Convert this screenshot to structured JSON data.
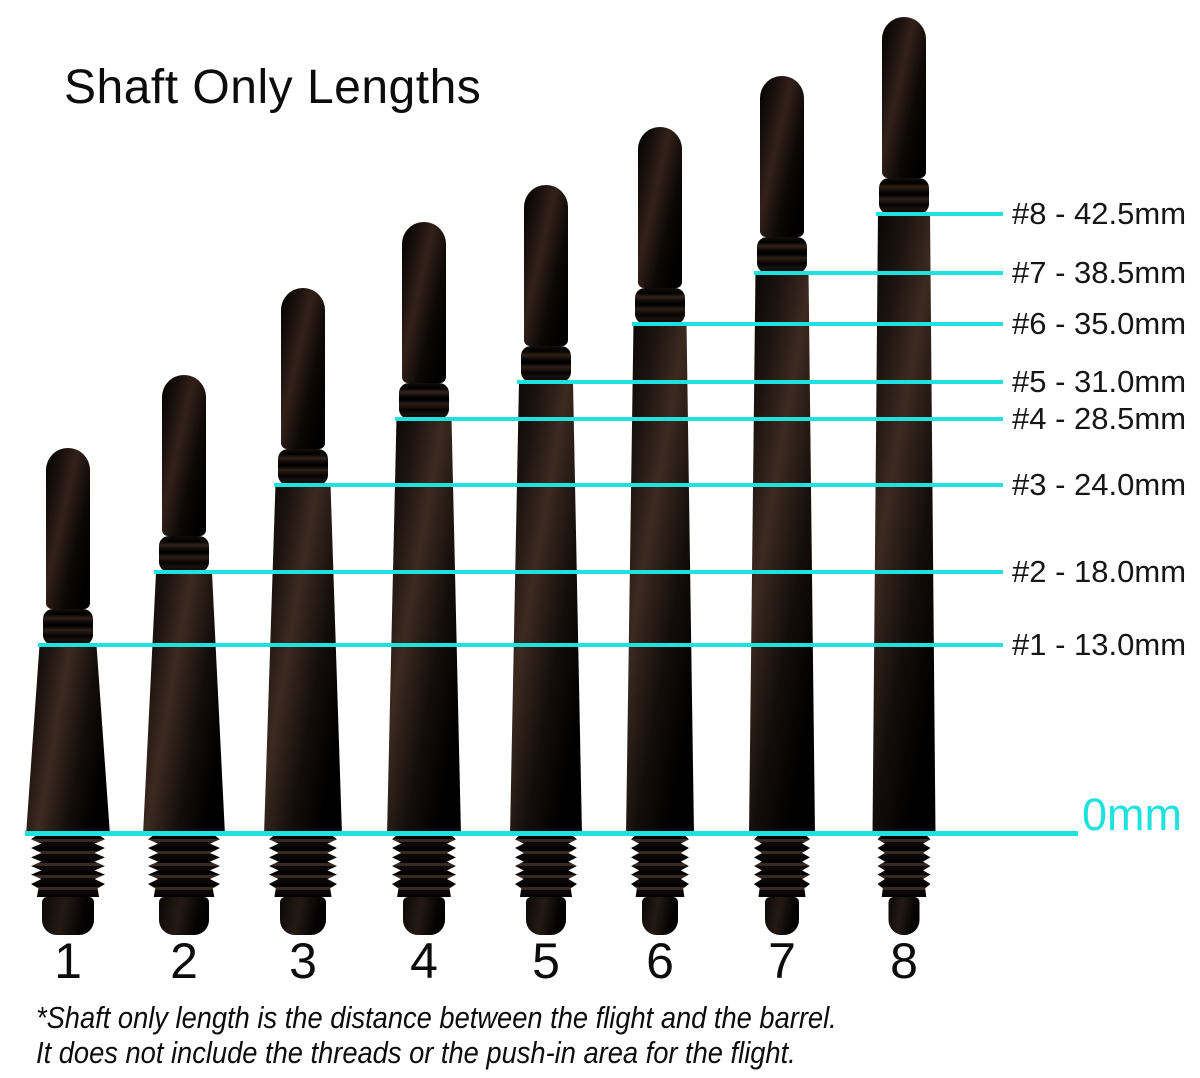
{
  "page": {
    "background_color": "#ffffff",
    "accent_color": "#1fe2df",
    "shaft_color": "#0a0706"
  },
  "header": {
    "title": "Shaft Only Lengths"
  },
  "baseline": {
    "label": "0mm"
  },
  "footnote": {
    "line1": "*Shaft only length is the distance between the flight and the barrel.",
    "line2": "It does not include the threads or the push-in area for the flight."
  },
  "chart_data": {
    "type": "bar",
    "title": "Shaft Only Lengths",
    "unit": "mm",
    "categories": [
      "1",
      "2",
      "3",
      "4",
      "5",
      "6",
      "7",
      "8"
    ],
    "values": [
      13.0,
      18.0,
      24.0,
      28.5,
      31.0,
      35.0,
      38.5,
      42.5
    ],
    "value_labels": [
      "#1 - 13.0mm",
      "#2 - 18.0mm",
      "#3 - 24.0mm",
      "#4 - 28.5mm",
      "#5 - 31.0mm",
      "#6 - 35.0mm",
      "#7 - 38.5mm",
      "#8 - 42.5mm"
    ],
    "baseline_label": "0mm",
    "ylim": [
      0,
      45
    ],
    "legend": "none",
    "grid": "off",
    "annotation": "*Shaft only length is the distance between the flight and the barrel. It does not include the threads or the push-in area for the flight."
  }
}
